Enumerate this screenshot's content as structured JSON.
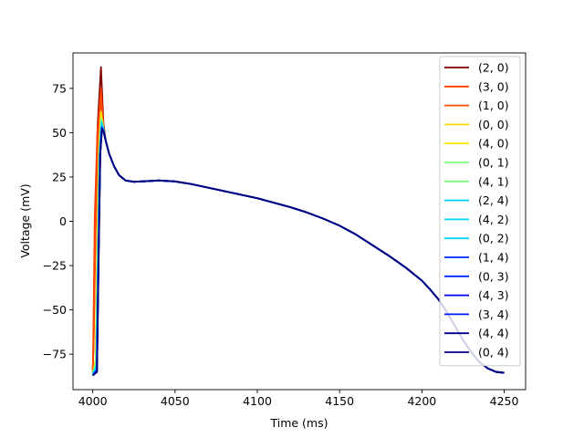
{
  "chart_data": {
    "type": "line",
    "title": "",
    "xlabel": "Time (ms)",
    "ylabel": "Voltage (mV)",
    "xlim": [
      3988,
      4263
    ],
    "ylim": [
      -95,
      95
    ],
    "xticks": [
      4000,
      4050,
      4100,
      4150,
      4200,
      4250
    ],
    "yticks": [
      -75,
      -50,
      -25,
      0,
      25,
      50,
      75
    ],
    "xtick_labels": [
      "4000",
      "4050",
      "4100",
      "4150",
      "4200",
      "4250"
    ],
    "ytick_labels": [
      "−75",
      "−50",
      "−25",
      "0",
      "25",
      "50",
      "75"
    ],
    "legend_position": "top-right",
    "grid": false,
    "common_tail": {
      "x": [
        4006,
        4008,
        4010,
        4013,
        4016,
        4020,
        4025,
        4030,
        4040,
        4050,
        4060,
        4070,
        4080,
        4090,
        4100,
        4110,
        4120,
        4130,
        4140,
        4150,
        4160,
        4170,
        4180,
        4190,
        4200,
        4205,
        4210,
        4215,
        4220,
        4225,
        4230,
        4235,
        4240,
        4245,
        4250
      ],
      "y": [
        51,
        45,
        38,
        31,
        26,
        23,
        22.3,
        22.5,
        23,
        22.5,
        21,
        19,
        17,
        15,
        13,
        10.5,
        8,
        5,
        1.5,
        -2.5,
        -7.5,
        -13.5,
        -19.5,
        -26,
        -33.5,
        -38.5,
        -44,
        -51,
        -59,
        -67,
        -74,
        -79.5,
        -83,
        -85,
        -85.5
      ]
    },
    "series": [
      {
        "name": "(2, 0)",
        "color": "#800000",
        "upstroke": [
          [
            4000,
            -84
          ],
          [
            4000.5,
            -70
          ],
          [
            4001.5,
            -5
          ],
          [
            4003,
            55
          ],
          [
            4005,
            87
          ],
          [
            4006.5,
            55
          ]
        ]
      },
      {
        "name": "(3, 0)",
        "color": "#ff3b00",
        "upstroke": [
          [
            4000,
            -85
          ],
          [
            4000.3,
            -68
          ],
          [
            4001.2,
            2
          ],
          [
            4002.8,
            50
          ],
          [
            4005,
            75
          ],
          [
            4006.5,
            53
          ]
        ]
      },
      {
        "name": "(1, 0)",
        "color": "#ff4a00",
        "upstroke": [
          [
            4000,
            -85
          ],
          [
            4000.6,
            -65
          ],
          [
            4001.8,
            -5
          ],
          [
            4003.2,
            45
          ],
          [
            4005,
            70
          ],
          [
            4006.5,
            52
          ]
        ]
      },
      {
        "name": "(0, 0)",
        "color": "#ffd700",
        "upstroke": [
          [
            4000,
            -86
          ],
          [
            4001.8,
            -78
          ],
          [
            4002.8,
            -15
          ],
          [
            4003.8,
            40
          ],
          [
            4005,
            62
          ],
          [
            4006.5,
            52
          ]
        ]
      },
      {
        "name": "(4, 0)",
        "color": "#ffe600",
        "upstroke": [
          [
            4000,
            -86
          ],
          [
            4001.7,
            -78
          ],
          [
            4002.7,
            -15
          ],
          [
            4003.7,
            40
          ],
          [
            4005,
            61
          ],
          [
            4006.5,
            52
          ]
        ]
      },
      {
        "name": "(0, 1)",
        "color": "#7dff7a",
        "upstroke": [
          [
            4000,
            -86
          ],
          [
            4002,
            -80
          ],
          [
            4003,
            -20
          ],
          [
            4004,
            38
          ],
          [
            4005.2,
            58
          ],
          [
            4006.5,
            52
          ]
        ]
      },
      {
        "name": "(4, 1)",
        "color": "#7dff7a",
        "upstroke": [
          [
            4000,
            -86
          ],
          [
            4002,
            -80
          ],
          [
            4003,
            -20
          ],
          [
            4004,
            38
          ],
          [
            4005.2,
            57
          ],
          [
            4006.5,
            52
          ]
        ]
      },
      {
        "name": "(2, 4)",
        "color": "#00d4ff",
        "upstroke": [
          [
            4000,
            -86
          ],
          [
            4002.2,
            -82
          ],
          [
            4003.2,
            -20
          ],
          [
            4004.2,
            38
          ],
          [
            4005.3,
            56
          ],
          [
            4006.5,
            52
          ]
        ]
      },
      {
        "name": "(4, 2)",
        "color": "#00d4ff",
        "upstroke": [
          [
            4000,
            -86
          ],
          [
            4002.2,
            -82
          ],
          [
            4003.2,
            -20
          ],
          [
            4004.2,
            38
          ],
          [
            4005.3,
            55
          ],
          [
            4006.5,
            52
          ]
        ]
      },
      {
        "name": "(0, 2)",
        "color": "#00d4ff",
        "upstroke": [
          [
            4000,
            -86
          ],
          [
            4002.3,
            -82
          ],
          [
            4003.3,
            -20
          ],
          [
            4004.3,
            38
          ],
          [
            4005.4,
            55
          ],
          [
            4006.5,
            52
          ]
        ]
      },
      {
        "name": "(1, 4)",
        "color": "#0028ff",
        "upstroke": [
          [
            4000,
            -87
          ],
          [
            4002.5,
            -84
          ],
          [
            4003.5,
            -20
          ],
          [
            4004.5,
            38
          ],
          [
            4005.5,
            53
          ],
          [
            4006.5,
            51
          ]
        ]
      },
      {
        "name": "(0, 3)",
        "color": "#0028ff",
        "upstroke": [
          [
            4000,
            -87
          ],
          [
            4002.5,
            -84
          ],
          [
            4003.5,
            -20
          ],
          [
            4004.5,
            38
          ],
          [
            4005.5,
            53
          ],
          [
            4006.5,
            51
          ]
        ]
      },
      {
        "name": "(4, 3)",
        "color": "#0000f1",
        "upstroke": [
          [
            4000,
            -87
          ],
          [
            4002.5,
            -84
          ],
          [
            4003.5,
            -20
          ],
          [
            4004.5,
            38
          ],
          [
            4005.5,
            52
          ],
          [
            4006.5,
            51
          ]
        ]
      },
      {
        "name": "(3, 4)",
        "color": "#0014ff",
        "upstroke": [
          [
            4000,
            -87
          ],
          [
            4002.5,
            -84
          ],
          [
            4003.5,
            -20
          ],
          [
            4004.5,
            38
          ],
          [
            4005.5,
            52
          ],
          [
            4006.5,
            51
          ]
        ]
      },
      {
        "name": "(4, 4)",
        "color": "#00008b",
        "upstroke": [
          [
            4000,
            -87
          ],
          [
            4002.6,
            -85
          ],
          [
            4003.6,
            -20
          ],
          [
            4004.6,
            38
          ],
          [
            4005.6,
            52
          ],
          [
            4006.5,
            51
          ]
        ]
      },
      {
        "name": "(0, 4)",
        "color": "#000080",
        "upstroke": [
          [
            4000,
            -87
          ],
          [
            4002.6,
            -85
          ],
          [
            4003.6,
            -20
          ],
          [
            4004.6,
            38
          ],
          [
            4005.6,
            52
          ],
          [
            4006.5,
            51
          ]
        ]
      }
    ]
  }
}
